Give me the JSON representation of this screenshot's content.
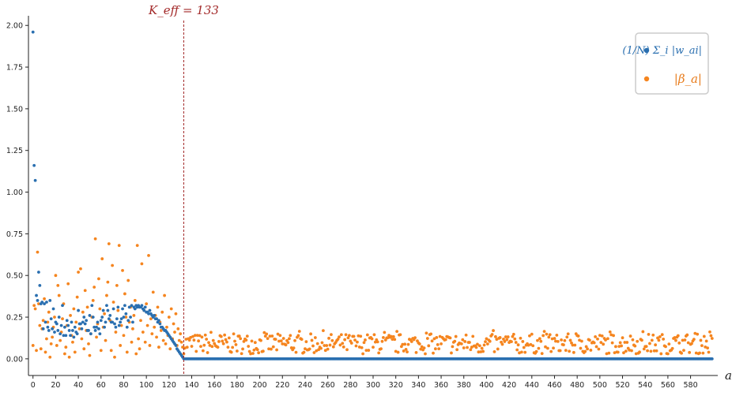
{
  "chart_data": {
    "type": "scatter",
    "title": "",
    "xlabel": "a",
    "ylabel": "",
    "xlim": [
      -4,
      604
    ],
    "ylim": [
      -0.1,
      2.02
    ],
    "grid": false,
    "legend_placement": "top-right",
    "x_ticks": [
      0,
      20,
      40,
      60,
      80,
      100,
      120,
      140,
      160,
      180,
      200,
      220,
      240,
      260,
      280,
      300,
      320,
      340,
      360,
      380,
      400,
      420,
      440,
      460,
      480,
      500,
      520,
      540,
      560,
      580
    ],
    "x_tick_labels": [
      "0",
      "20",
      "40",
      "60",
      "80",
      "100",
      "120",
      "140",
      "160",
      "180",
      "200",
      "220",
      "240",
      "260",
      "280",
      "300",
      "320",
      "340",
      "360",
      "380",
      "400",
      "420",
      "440",
      "460",
      "480",
      "500",
      "520",
      "540",
      "560",
      "580"
    ],
    "y_ticks": [
      0.0,
      0.25,
      0.5,
      0.75,
      1.0,
      1.25,
      1.5,
      1.75,
      2.0
    ],
    "y_tick_labels": [
      "0.00",
      "0.25",
      "0.50",
      "0.75",
      "1.00",
      "1.25",
      "1.50",
      "1.75",
      "2.00"
    ],
    "annotation": {
      "label": "K_eff = 133",
      "x": 133,
      "color": "#a32a2a",
      "style": "dashed-vertical-line"
    },
    "series": [
      {
        "name": "(1/N) Σ_i |w_ai|",
        "color": "#2a6fb0",
        "description": "blue markers",
        "values_head": [
          1.96,
          1.16,
          1.07,
          0.38,
          0.35,
          0.52,
          0.44,
          0.33,
          0.34,
          0.18,
          0.33,
          0.22,
          0.34,
          0.19,
          0.17,
          0.35,
          0.24,
          0.18,
          0.3,
          0.16,
          0.22,
          0.21,
          0.17,
          0.25,
          0.15,
          0.2,
          0.32,
          0.14,
          0.19,
          0.14,
          0.23,
          0.2,
          0.17,
          0.14,
          0.22,
          0.17,
          0.13,
          0.19,
          0.16,
          0.15,
          0.29,
          0.21,
          0.21,
          0.18,
          0.22,
          0.25,
          0.21,
          0.23,
          0.17,
          0.17,
          0.26,
          0.15,
          0.32,
          0.25,
          0.19,
          0.17,
          0.19,
          0.22,
          0.18,
          0.15,
          0.23,
          0.25,
          0.29,
          0.19,
          0.22,
          0.32,
          0.29,
          0.24,
          0.26,
          0.22,
          0.22,
          0.3,
          0.21,
          0.19,
          0.24,
          0.31,
          0.2,
          0.22,
          0.24,
          0.3,
          0.25,
          0.32,
          0.27,
          0.19,
          0.23,
          0.31,
          0.25,
          0.32,
          0.22,
          0.31,
          0.3,
          0.32,
          0.31,
          0.32,
          0.31,
          0.31,
          0.32,
          0.3,
          0.29,
          0.31,
          0.28,
          0.28,
          0.27,
          0.29,
          0.27,
          0.26,
          0.25,
          0.26,
          0.24,
          0.24,
          0.22,
          0.23,
          0.21,
          0.19,
          0.19,
          0.18,
          0.17,
          0.17,
          0.16,
          0.15,
          0.14,
          0.13,
          0.12,
          0.11,
          0.1,
          0.09,
          0.08,
          0.06,
          0.05,
          0.04,
          0.03,
          0.02,
          0.01
        ],
        "values_tail": 0.0,
        "x_range": [
          0,
          599
        ]
      },
      {
        "name": "|β_a|",
        "color": "#f5851f",
        "description": "orange markers, scattered roughly 0.02–0.72 for a<133 and 0.03–0.17 for a>=133",
        "x_range": [
          0,
          599
        ]
      }
    ],
    "legend": [
      "(1/N) Σ_i |w_ai|",
      "|β_a|"
    ]
  }
}
